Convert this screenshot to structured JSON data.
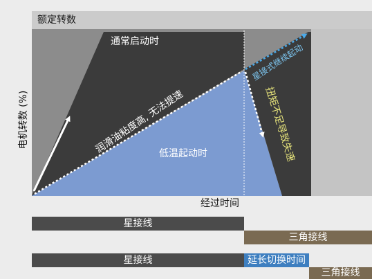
{
  "diagram": {
    "rated_speed_label": "额定转数",
    "y_axis_label": "电机转数 (%)",
    "x_axis_label": "经过时间",
    "normal_start_label": "通常启动时",
    "cold_start_label": "低温起动时",
    "oil_label": "润滑油粘度高, 无法提速",
    "star_continue_label": "星接式继续起动",
    "torque_label": "扭矩不足导致失速"
  },
  "timeline": {
    "row1_star": "星接线",
    "row1_delta": "三角接线",
    "row2_star": "星接线",
    "row2_extend": "延长切换时间",
    "row2_delta": "三角接线"
  },
  "colors": {
    "dark_region": "#3b3b3b",
    "mid_region": "#8c8c8c",
    "cold_region": "#7c9bd1",
    "star_bar": "#4b4b4b",
    "delta_bar": "#7a6a52",
    "extend_bar": "#3e7fc0",
    "star_continue_arrow": "#4aa9e8"
  }
}
